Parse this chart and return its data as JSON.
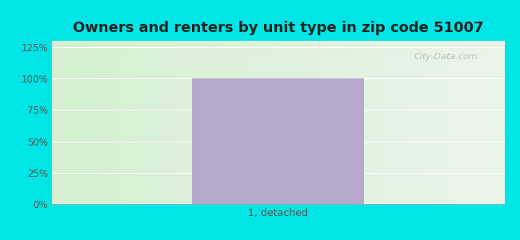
{
  "title": "Owners and renters by unit type in zip code 51007",
  "categories": [
    "1, detached"
  ],
  "values": [
    100
  ],
  "bar_color": "#b8a8cc",
  "outer_bg": "#00e5e5",
  "inner_bg_left": "#d4efd0",
  "inner_bg_right": "#eaf5ea",
  "yticks": [
    0,
    25,
    50,
    75,
    100,
    125
  ],
  "yticklabels": [
    "0%",
    "25%",
    "50%",
    "75%",
    "100%",
    "125%"
  ],
  "ylim": [
    0,
    130
  ],
  "watermark": "City-Data.com",
  "title_fontsize": 13,
  "bar_width": 0.38
}
